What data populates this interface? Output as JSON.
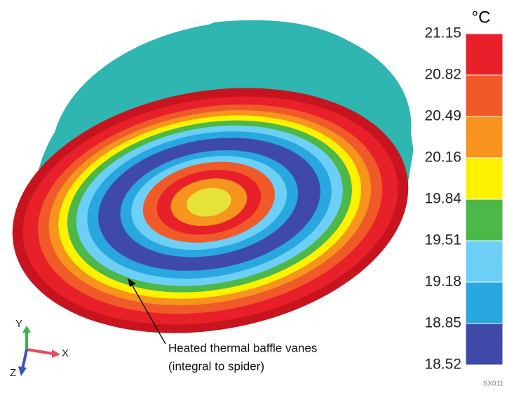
{
  "colorbar": {
    "unit": "°C",
    "ticks": [
      21.15,
      20.82,
      20.49,
      20.16,
      19.84,
      19.51,
      19.18,
      18.85,
      18.52
    ],
    "colors": [
      "#e8202a",
      "#f05a28",
      "#f7941d",
      "#fff200",
      "#4cb848",
      "#6dcff6",
      "#29a8e0",
      "#3f4aa8"
    ]
  },
  "annotation": {
    "line1": "Heated thermal baffle vanes",
    "line2": "(integral to spider)"
  },
  "axes": {
    "y": "Y",
    "x": "X",
    "z": "Z"
  },
  "figure_id": "SX011"
}
